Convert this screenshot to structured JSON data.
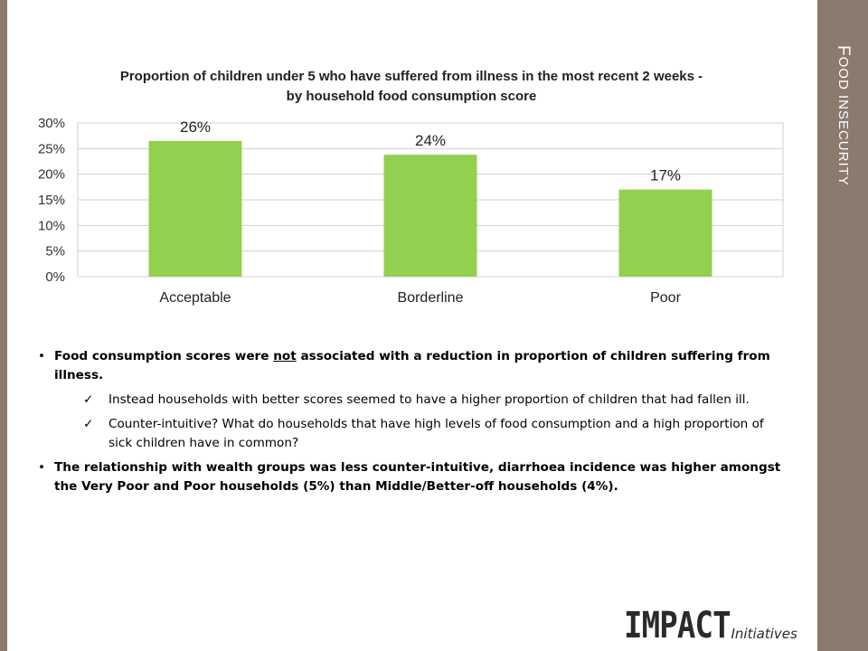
{
  "side_panel": {
    "title_first": "F",
    "title_rest": "OOD INSECURITY"
  },
  "chart_data": {
    "type": "bar",
    "title_line1": "Proportion of children under 5 who have suffered from illness in the most recent 2 weeks -",
    "title_line2": "by household food consumption score",
    "categories": [
      "Acceptable",
      "Borderline",
      "Poor"
    ],
    "values": [
      26.5,
      23.8,
      17.0
    ],
    "data_labels": [
      "26%",
      "24%",
      "17%"
    ],
    "y_ticks": [
      "0%",
      "5%",
      "10%",
      "15%",
      "20%",
      "25%",
      "30%"
    ],
    "ylim": [
      0,
      30
    ],
    "bar_color": "#92d050",
    "grid": true
  },
  "bullets": {
    "b1_pre": "Food consumption scores were ",
    "b1_u": "not",
    "b1_post": " associated with a reduction in proportion of children suffering from illness.",
    "check_mark": "✓",
    "c1": "Instead households with better scores seemed to have a higher proportion of children that had fallen ill.",
    "c2": "Counter-intuitive? What do households that have high levels of food consumption and a high proportion of sick children have in common?",
    "b2": "The relationship with wealth groups was less counter-intuitive, diarrhoea incidence was higher amongst the Very Poor and Poor households (5%) than Middle/Better-off households (4%)."
  },
  "logo": {
    "main": "IMPACT",
    "sub": "Initiatives"
  }
}
